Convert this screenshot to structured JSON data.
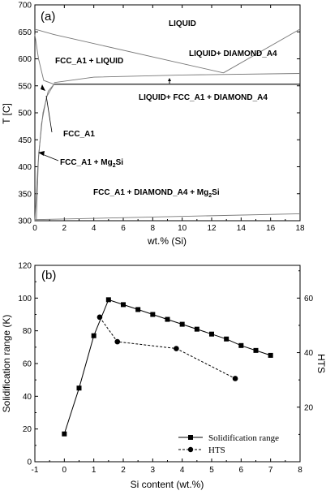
{
  "chart_data": [
    {
      "type": "line",
      "panel_label": "(a)",
      "xlabel": "wt.% (Si)",
      "ylabel": "T [C]",
      "xlim": [
        0,
        18
      ],
      "ylim": [
        300,
        700
      ],
      "x_ticks": [
        "0",
        "2",
        "4",
        "6",
        "8",
        "10",
        "12",
        "14",
        "16",
        "18"
      ],
      "y_ticks": [
        "300",
        "350",
        "400",
        "450",
        "500",
        "550",
        "600",
        "650",
        "700"
      ],
      "regions": {
        "liquid": "LIQUID",
        "liquid_diamond": "LIQUID+ DIAMOND_A4",
        "fcc_liquid": "FCC_A1 + LIQUID",
        "liquid_fcc_diamond": "LIQUID+ FCC_A1 + DIAMOND_A4",
        "fcc": "FCC_A1",
        "fcc_mg2si_main": "FCC_A1 + Mg",
        "fcc_mg2si_sub": "2",
        "fcc_mg2si_end": "Si",
        "three_phase_main": "FCC_A1 + DIAMOND_A4 + Mg",
        "three_phase_sub": "2",
        "three_phase_end": "Si"
      },
      "lines": {
        "liquidus_fcc": [
          [
            0,
            655
          ],
          [
            1.3,
            645
          ],
          [
            12.8,
            574
          ]
        ],
        "liquidus_diamond": [
          [
            12.8,
            574
          ],
          [
            18,
            655
          ]
        ],
        "eutectic_upper": [
          [
            1.3,
            556
          ],
          [
            4,
            566
          ],
          [
            10,
            570
          ],
          [
            18,
            573
          ]
        ],
        "eutectic_lower": [
          [
            1.3,
            553
          ],
          [
            18,
            553
          ]
        ],
        "solidus": [
          [
            0,
            645
          ],
          [
            0.25,
            600
          ],
          [
            0.6,
            560
          ],
          [
            1.3,
            553
          ]
        ],
        "solvus_mg2si": [
          [
            0,
            300
          ],
          [
            0.2,
            400
          ],
          [
            0.45,
            480
          ],
          [
            0.8,
            530
          ],
          [
            1.3,
            553
          ]
        ],
        "solvus_fcc": [
          [
            0.1,
            300
          ],
          [
            0.25,
            420
          ],
          [
            0.55,
            500
          ],
          [
            0.9,
            540
          ],
          [
            1.3,
            553
          ]
        ],
        "bottom_boundary": [
          [
            0,
            302
          ],
          [
            18,
            313
          ]
        ]
      }
    },
    {
      "type": "line",
      "panel_label": "(b)",
      "xlabel": "Si content (wt.%)",
      "ylabel": "Solidification range (K)",
      "y2label": "HTS",
      "xlim": [
        -1,
        8
      ],
      "ylim": [
        0,
        120
      ],
      "y2lim": [
        0,
        72
      ],
      "x_ticks": [
        "-1",
        "0",
        "1",
        "2",
        "3",
        "4",
        "5",
        "6",
        "7",
        "8"
      ],
      "y_ticks": [
        "0",
        "20",
        "40",
        "60",
        "80",
        "100",
        "120"
      ],
      "y2_ticks": [
        "20",
        "40",
        "60"
      ],
      "series": [
        {
          "name": "Solidification range",
          "axis": "left",
          "marker": "square",
          "style": "solid",
          "x": [
            0,
            0.5,
            1.0,
            1.5,
            2.0,
            2.5,
            3.0,
            3.5,
            4.0,
            4.5,
            5.0,
            5.5,
            6.0,
            6.5,
            7.0
          ],
          "y": [
            17,
            45,
            77,
            99,
            96,
            93,
            90,
            87,
            84,
            81,
            78,
            75,
            71,
            68,
            65
          ]
        },
        {
          "name": "HTS",
          "axis": "right",
          "marker": "circle",
          "style": "dashed",
          "x": [
            1.2,
            1.8,
            3.8,
            5.8
          ],
          "y": [
            53,
            44,
            41.5,
            30.5
          ]
        }
      ]
    }
  ]
}
